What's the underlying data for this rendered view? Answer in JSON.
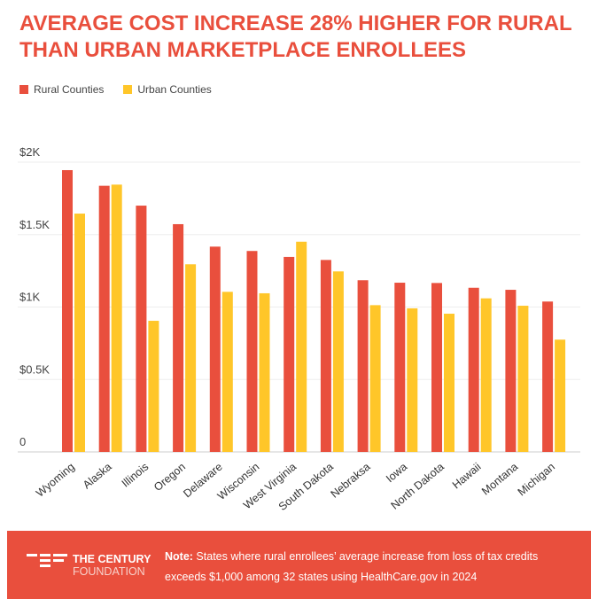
{
  "chart_data": {
    "type": "bar",
    "title": "AVERAGE COST INCREASE 28% HIGHER FOR RURAL THAN URBAN MARKETPLACE ENROLLEES",
    "categories": [
      "Wyoming",
      "Alaska",
      "Illinois",
      "Oregon",
      "Delaware",
      "Wisconsin",
      "West Virginia",
      "South Dakota",
      "Nebraksa",
      "Iowa",
      "North Dakota",
      "Hawaii",
      "Montana",
      "Michigan"
    ],
    "series": [
      {
        "name": "Rural Counties",
        "color": "#e94f3d",
        "values": [
          1945,
          1837,
          1700,
          1572,
          1417,
          1387,
          1346,
          1325,
          1185,
          1168,
          1166,
          1133,
          1119,
          1038
        ]
      },
      {
        "name": "Urban Counties",
        "color": "#ffc629",
        "values": [
          1645,
          1845,
          905,
          1295,
          1105,
          1095,
          1451,
          1246,
          1013,
          991,
          954,
          1060,
          1009,
          775
        ]
      }
    ],
    "ylim": [
      0,
      2000
    ],
    "yticks": [
      {
        "v": 0,
        "label": "0"
      },
      {
        "v": 500,
        "label": "$0.5K"
      },
      {
        "v": 1000,
        "label": "$1K"
      },
      {
        "v": 1500,
        "label": "$1.5K"
      },
      {
        "v": 2000,
        "label": "$2K"
      }
    ],
    "grid": true,
    "legend_placement": "top-left"
  },
  "footer": {
    "logo_line1": "THE CENTURY",
    "logo_line2": "FOUNDATION",
    "note_label": "Note:",
    "note_text": " States where rural enrollees’ average increase from loss of tax credits exceeds $1,000 among 32 states using HealthCare.gov in 2024"
  }
}
